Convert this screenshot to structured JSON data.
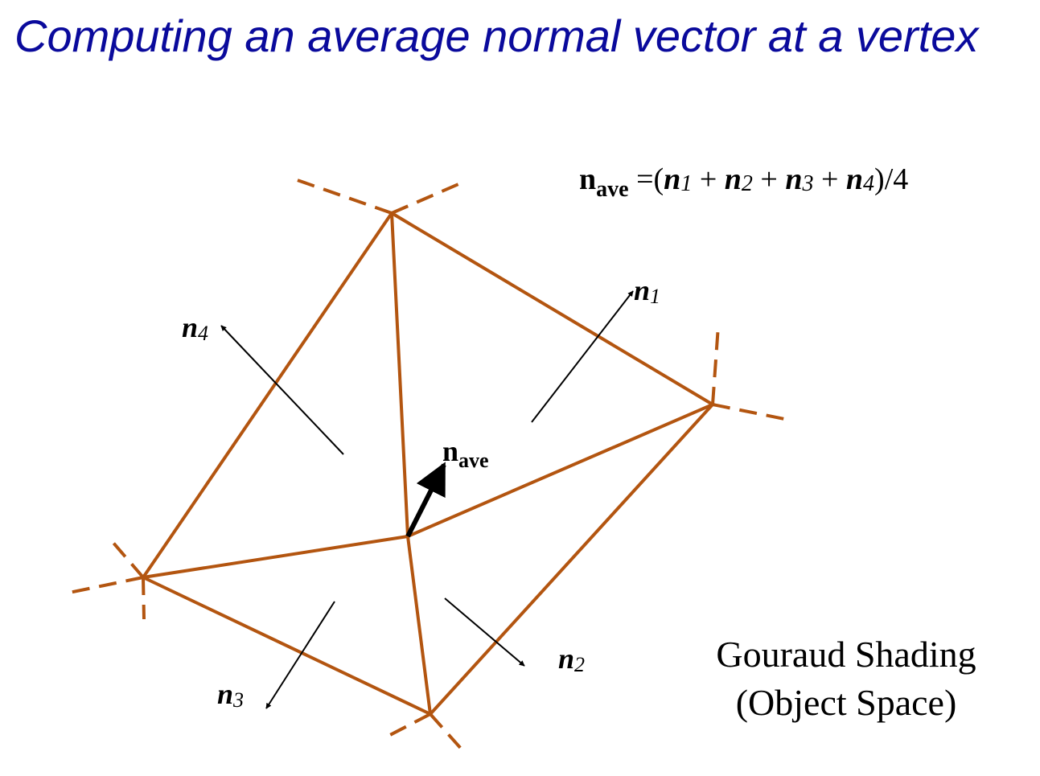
{
  "title": "Computing an average normal vector at a vertex",
  "formula": {
    "lhs_symbol": "n",
    "lhs_subscript": "ave",
    "equals_open": "=(",
    "terms": [
      {
        "symbol": "n",
        "subscript": "1"
      },
      {
        "symbol": "n",
        "subscript": "2"
      },
      {
        "symbol": "n",
        "subscript": "3"
      },
      {
        "symbol": "n",
        "subscript": "4"
      }
    ],
    "plus": " + ",
    "close_divide": ")/4"
  },
  "labels": {
    "n1": {
      "symbol": "n",
      "subscript": "1"
    },
    "n2": {
      "symbol": "n",
      "subscript": "2"
    },
    "n3": {
      "symbol": "n",
      "subscript": "3"
    },
    "n4": {
      "symbol": "n",
      "subscript": "4"
    },
    "nave": {
      "symbol": "n",
      "subscript": "ave"
    }
  },
  "caption": {
    "line1": "Gouraud Shading",
    "line2": "(Object Space)"
  },
  "colors": {
    "title": "#0a0a9c",
    "edge": "#b35510",
    "arrow": "#000000"
  }
}
